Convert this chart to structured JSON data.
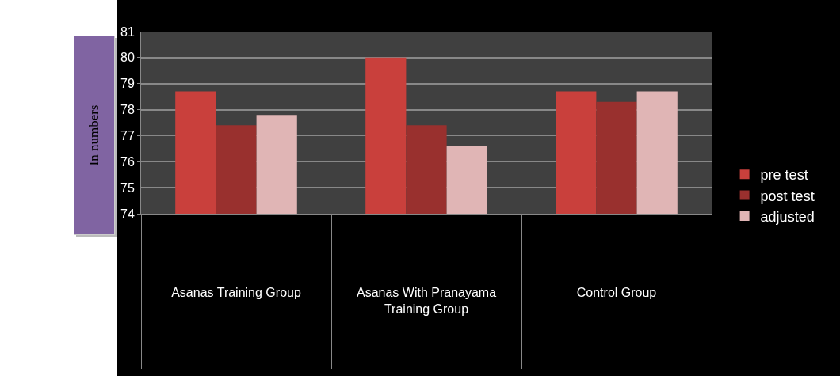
{
  "chart_data": {
    "type": "bar",
    "ylabel": "In numbers",
    "categories": [
      "Asanas Training Group",
      "Asanas With Pranayama Training Group",
      "Control Group"
    ],
    "series": [
      {
        "name": "pre test",
        "color": "#c9403c",
        "values": [
          78.7,
          80.0,
          78.7
        ]
      },
      {
        "name": "post test",
        "color": "#99302e",
        "values": [
          77.4,
          77.4,
          78.3
        ]
      },
      {
        "name": "adjusted",
        "color": "#e0b5b5",
        "values": [
          77.8,
          76.6,
          78.7
        ]
      }
    ],
    "ylim": [
      74,
      81
    ],
    "yticks": [
      74,
      75,
      76,
      77,
      78,
      79,
      80,
      81
    ],
    "grid": "y",
    "legend": "right"
  }
}
